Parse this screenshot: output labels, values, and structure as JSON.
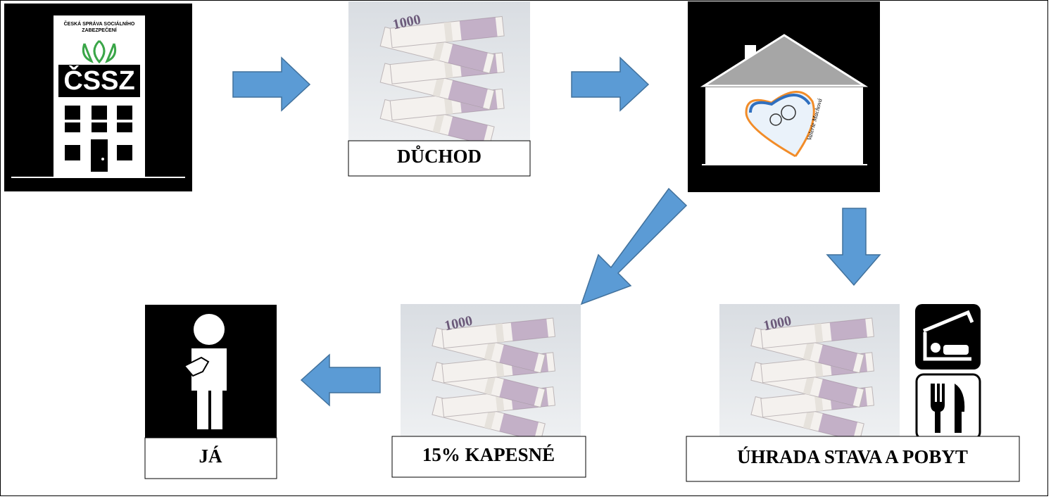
{
  "cssz": {
    "header": [
      "ČESKÁ SPRÁVA SOCIÁLNÍHO",
      "ZABEZPEČENÍ"
    ],
    "name": "ČSSZ"
  },
  "banknote": "1000",
  "home_logo": "Valerie Machová",
  "labels": {
    "pension": "DŮCHOD",
    "pocket_money": "15% KAPESNÉ",
    "me": "JÁ",
    "payment": "ÚHRADA STAVA A POBYT"
  }
}
